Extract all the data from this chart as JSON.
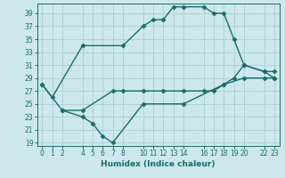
{
  "xlabel": "Humidex (Indice chaleur)",
  "bg_color": "#cce8ec",
  "grid_color": "#b0d0d8",
  "line_color": "#1a6b6b",
  "xlim": [
    -0.5,
    23.5
  ],
  "ylim": [
    18.5,
    40.5
  ],
  "xticks": [
    0,
    1,
    2,
    4,
    5,
    6,
    7,
    8,
    10,
    11,
    12,
    13,
    14,
    16,
    17,
    18,
    19,
    20,
    22,
    23
  ],
  "yticks": [
    19,
    21,
    23,
    25,
    27,
    29,
    31,
    33,
    35,
    37,
    39
  ],
  "line1_x": [
    0,
    1,
    4,
    8,
    10,
    11,
    12,
    13,
    14,
    16,
    17,
    18,
    19,
    20,
    22,
    23
  ],
  "line1_y": [
    28,
    26,
    34,
    34,
    37,
    38,
    38,
    40,
    40,
    40,
    39,
    39,
    35,
    31,
    30,
    29
  ],
  "line2_x": [
    0,
    2,
    4,
    7,
    8,
    10,
    12,
    14,
    16,
    17,
    18,
    19,
    20,
    22,
    23
  ],
  "line2_y": [
    28,
    24,
    24,
    27,
    27,
    27,
    27,
    27,
    27,
    27,
    28,
    29,
    31,
    30,
    30
  ],
  "line3_x": [
    2,
    4,
    5,
    6,
    7,
    10,
    14,
    18,
    20,
    22,
    23
  ],
  "line3_y": [
    24,
    23,
    22,
    20,
    19,
    25,
    25,
    28,
    29,
    29,
    29
  ],
  "marker": "D",
  "markersize": 2.5,
  "linewidth": 1.0,
  "tick_fontsize": 5.5,
  "xlabel_fontsize": 6.5
}
